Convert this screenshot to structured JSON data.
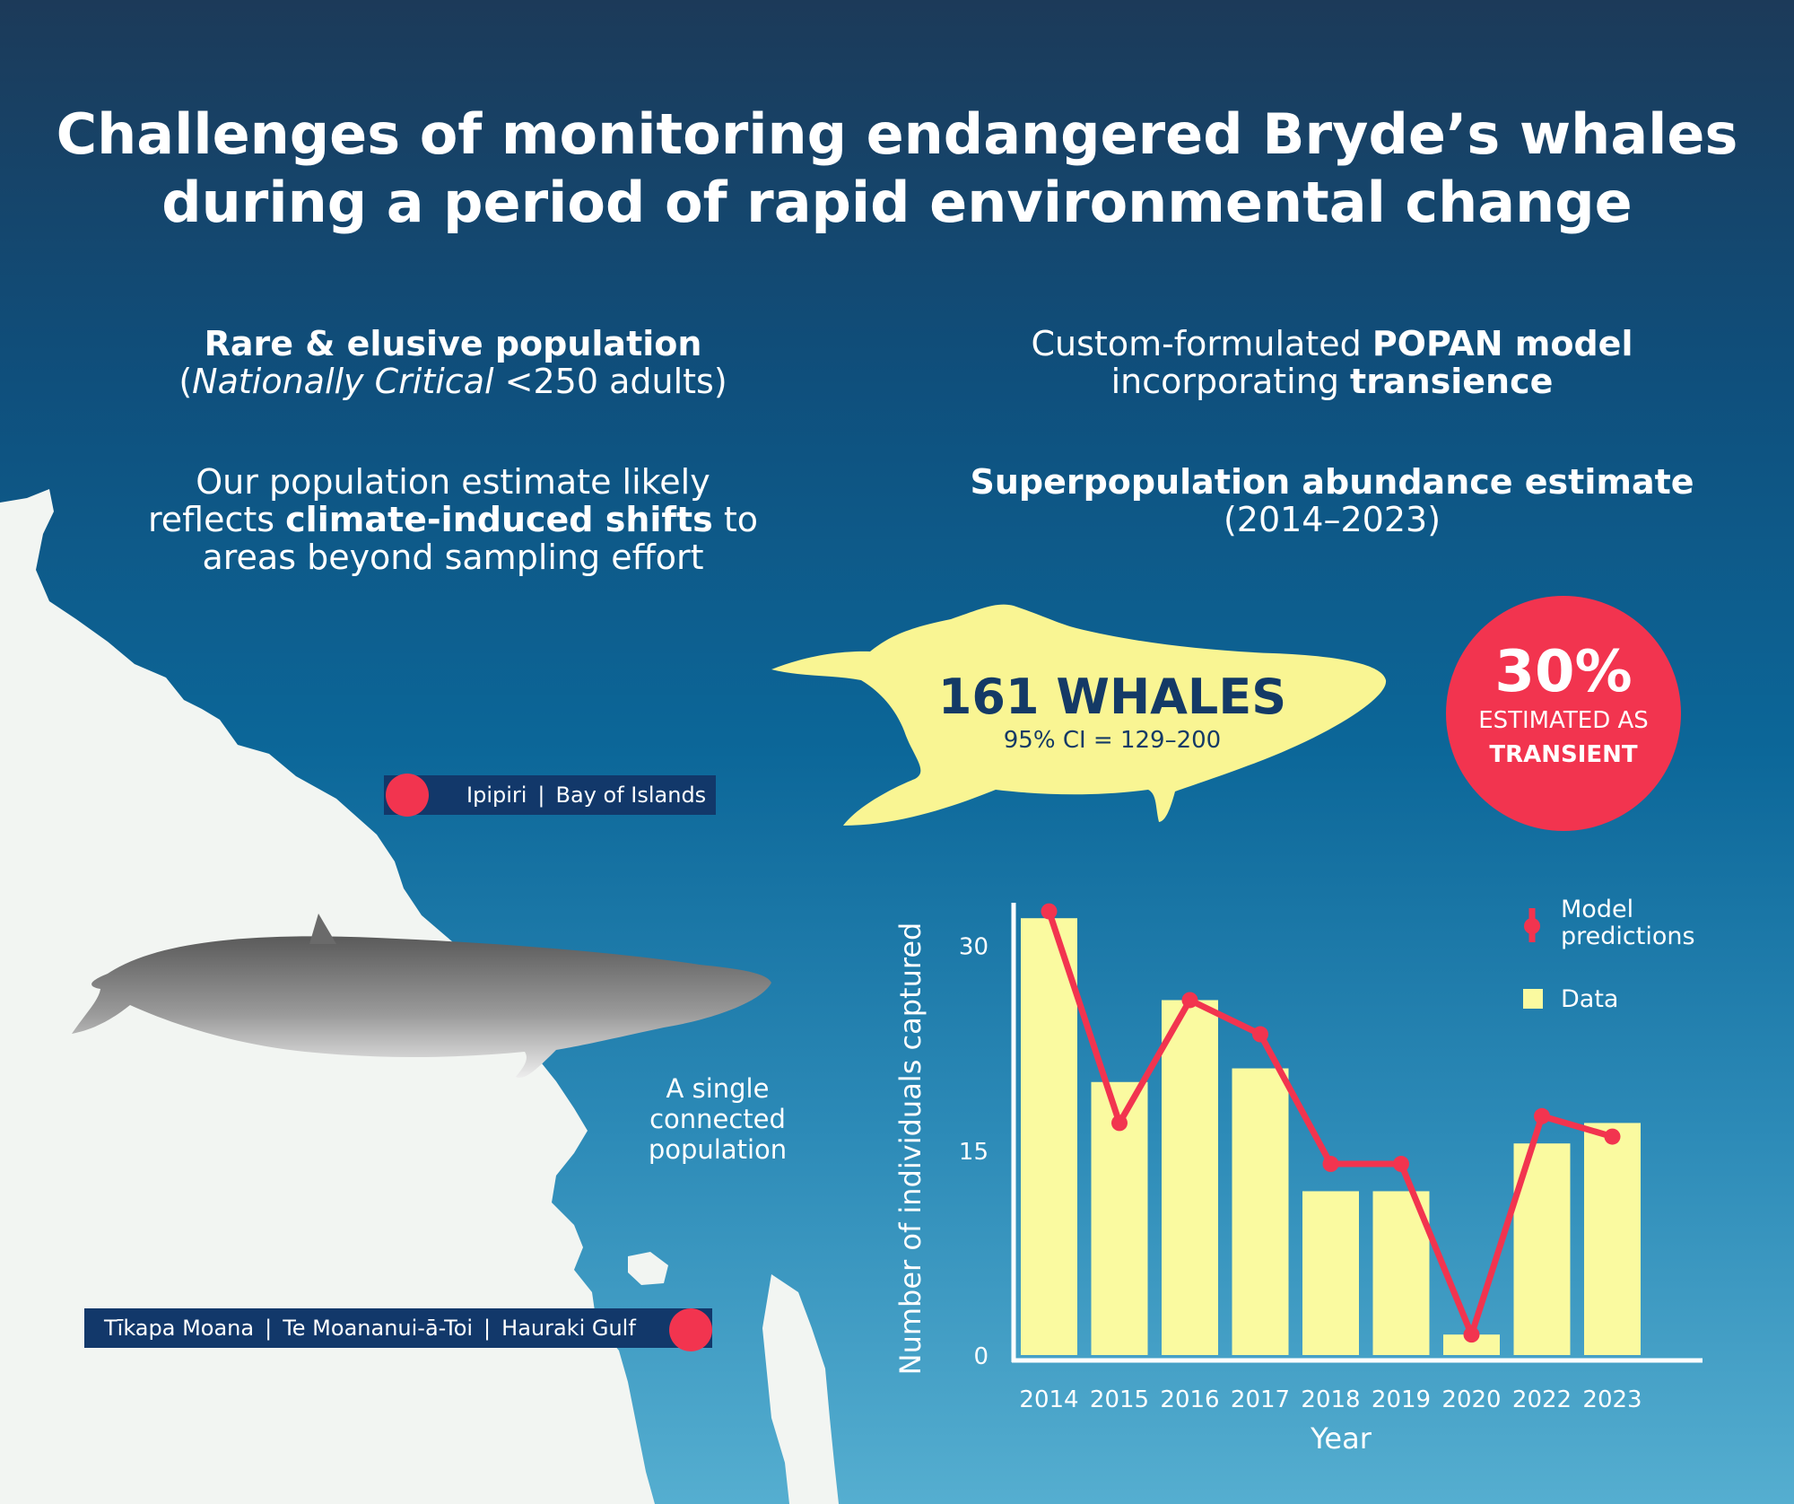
{
  "title_line1": "Challenges of monitoring endangered Bryde’s whales",
  "title_line2": "during a period of rapid environmental change",
  "left": {
    "heading": "Rare & elusive population",
    "subheading_open": "(",
    "subheading_italic": "Nationally Critical",
    "subheading_rest": " <250 adults)",
    "shift_line1": "Our population estimate likely",
    "shift_pre": "reflects ",
    "shift_bold": "climate-induced shifts",
    "shift_post": " to",
    "shift_line3": "areas beyond sampling effort"
  },
  "right": {
    "model_pre": "Custom-formulated ",
    "model_bold": "POPAN model",
    "model_line2_pre": "incorporating ",
    "model_line2_bold": "transience",
    "estimate_heading": "Superpopulation abundance estimate",
    "estimate_years": "(2014–2023)"
  },
  "whale": {
    "count": "161 WHALES",
    "ci": "95% CI = 129–200",
    "color": "#f9f593"
  },
  "transient": {
    "percent": "30%",
    "line1": "ESTIMATED AS",
    "line2": "TRANSIENT",
    "color": "#f2344f"
  },
  "map": {
    "north_parts": [
      "Ipipiri",
      "Bay of Islands"
    ],
    "south_parts": [
      "Tīkapa Moana",
      "Te Moananui-ā-Toi",
      "Hauraki Gulf"
    ],
    "connected_line1": "A single",
    "connected_line2": "connected",
    "connected_line3": "population"
  },
  "chart_data": {
    "type": "bar",
    "categories": [
      "2014",
      "2015",
      "2016",
      "2017",
      "2018",
      "2019",
      "2020",
      "2022",
      "2023"
    ],
    "series": [
      {
        "name": "Data",
        "type": "bar",
        "color": "#fafaa0",
        "values": [
          32,
          20,
          26,
          21,
          12,
          12,
          1.5,
          15.5,
          17
        ]
      },
      {
        "name": "Model predictions",
        "type": "line",
        "color": "#f2344f",
        "values": [
          32.5,
          17,
          26,
          23.5,
          14,
          14,
          1.5,
          17.5,
          16
        ]
      }
    ],
    "ylabel": "Number of individuals captured",
    "xlabel": "Year",
    "ylim": [
      0,
      33
    ],
    "yticks": [
      0,
      15,
      30
    ],
    "legend_position": "top-right",
    "legend_model_line1": "Model",
    "legend_model_line2": "predictions",
    "legend_data": "Data"
  }
}
